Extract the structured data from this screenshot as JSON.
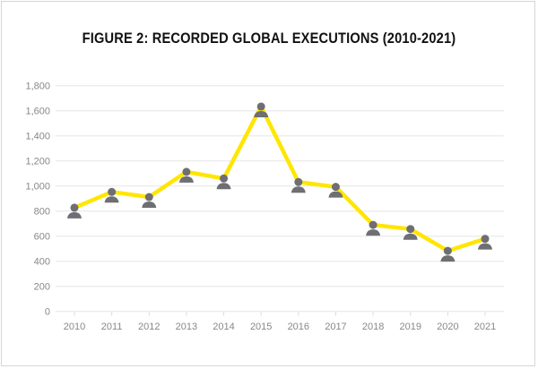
{
  "chart_data": {
    "type": "line",
    "title": "FIGURE 2: RECORDED GLOBAL EXECUTIONS (2010-2021)",
    "categories": [
      "2010",
      "2011",
      "2012",
      "2013",
      "2014",
      "2015",
      "2016",
      "2017",
      "2018",
      "2019",
      "2020",
      "2021"
    ],
    "values": [
      827,
      953,
      912,
      1113,
      1060,
      1634,
      1032,
      993,
      690,
      657,
      483,
      579
    ],
    "ylim": [
      0,
      1800
    ],
    "yticks": [
      0,
      200,
      400,
      600,
      800,
      1000,
      1200,
      1400,
      1600,
      1800
    ],
    "ytick_labels": [
      "0",
      "200",
      "400",
      "600",
      "800",
      "1,000",
      "1,200",
      "1,400",
      "1,600",
      "1,800"
    ],
    "grid": true,
    "line_color": "#ffe600",
    "marker_color": "#6e6e73",
    "marker_icon": "person-icon"
  }
}
